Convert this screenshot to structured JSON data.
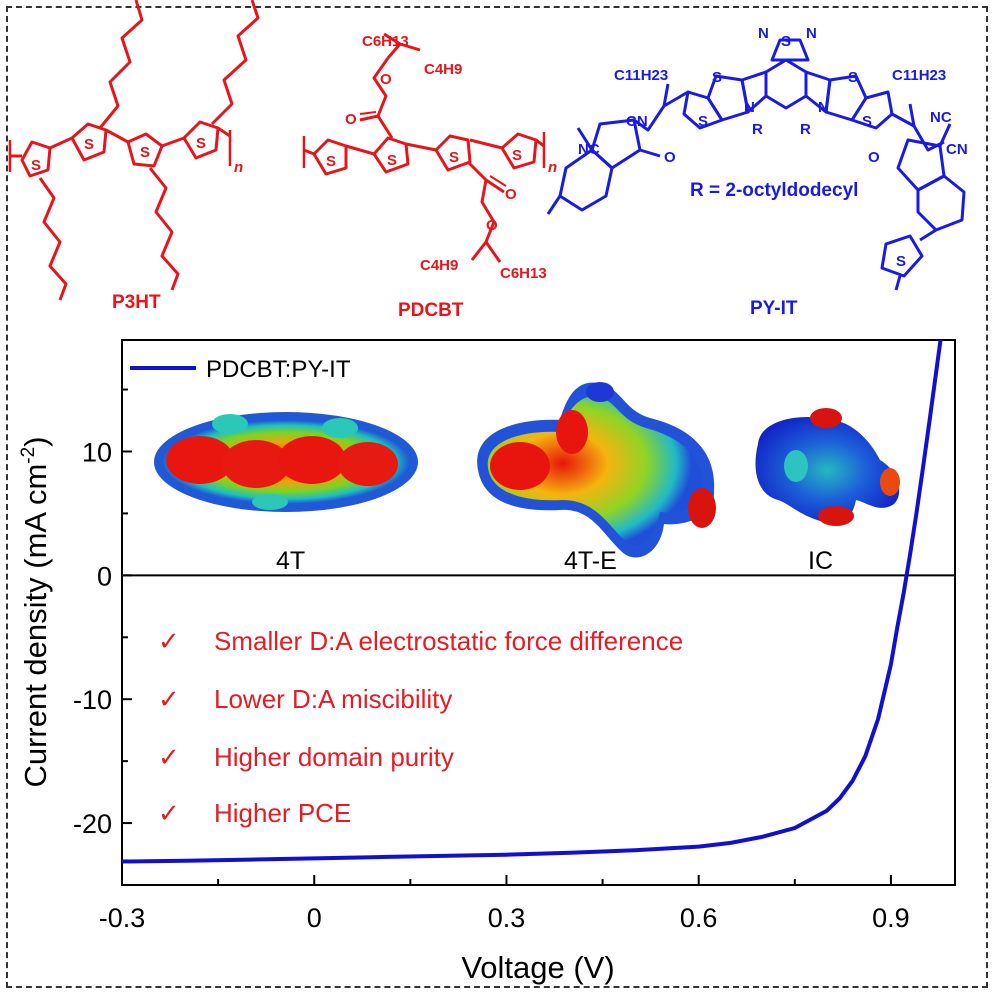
{
  "colors": {
    "donor": "#e8141b",
    "acceptor": "#1a1ae6",
    "curve": "#1010d0",
    "feature_text": "#e51c23",
    "axis": "#000000"
  },
  "molecules": {
    "p3ht": {
      "label": "P3HT",
      "atoms": {
        "s": "S",
        "n": "n"
      }
    },
    "pdcbt": {
      "label": "PDCBT",
      "atoms": {
        "s": "S",
        "o": "O",
        "n": "n",
        "c6h13": "C6H13",
        "c4h9": "C4H9"
      }
    },
    "pyit": {
      "label": "PY-IT",
      "r_def": "R = 2-octyldodecyl",
      "atoms": {
        "s": "S",
        "n": "N",
        "nc": "NC",
        "cn": "CN",
        "o": "O",
        "r": "R",
        "c11h23": "C11H23"
      }
    }
  },
  "insets": {
    "labels": [
      "4T",
      "4T-E",
      "IC"
    ]
  },
  "features": [
    {
      "mark": "✓",
      "text": "Smaller D:A electrostatic force difference"
    },
    {
      "mark": "✓",
      "text": "Lower D:A miscibility"
    },
    {
      "mark": "✓",
      "text": "Higher domain purity"
    },
    {
      "mark": "✓",
      "text": "Higher PCE"
    }
  ],
  "chart_data": {
    "type": "line",
    "title": "",
    "xlabel": "Voltage (V)",
    "ylabel": "Current density (mA cm-2)",
    "ylabel_main": "Current density (mA cm",
    "ylabel_sup": "-2",
    "ylabel_close": ")",
    "xlim": [
      -0.3,
      1.0
    ],
    "ylim": [
      -25,
      19
    ],
    "xticks": [
      -0.3,
      0,
      0.3,
      0.6,
      0.9
    ],
    "xtick_labels": [
      "-0.3",
      "0",
      "0.3",
      "0.6",
      "0.9"
    ],
    "yticks": [
      -20,
      -10,
      0,
      10
    ],
    "ytick_labels": [
      "-20",
      "-10",
      "0",
      "10"
    ],
    "zero_line": true,
    "legend": "top-left",
    "series": [
      {
        "name": "PDCBT:PY-IT",
        "x": [
          -0.3,
          -0.2,
          -0.1,
          0.0,
          0.1,
          0.2,
          0.3,
          0.4,
          0.5,
          0.6,
          0.65,
          0.7,
          0.75,
          0.8,
          0.82,
          0.84,
          0.86,
          0.88,
          0.9,
          0.91,
          0.92,
          0.93,
          0.94,
          0.95,
          0.96,
          0.97,
          0.98
        ],
        "y": [
          -23.1,
          -23.05,
          -22.95,
          -22.85,
          -22.75,
          -22.65,
          -22.55,
          -22.4,
          -22.2,
          -21.9,
          -21.6,
          -21.1,
          -20.4,
          -19.0,
          -18.0,
          -16.6,
          -14.6,
          -11.6,
          -7.2,
          -4.2,
          -1.4,
          1.7,
          5.1,
          8.7,
          12.4,
          16.2,
          20.0
        ]
      }
    ]
  }
}
